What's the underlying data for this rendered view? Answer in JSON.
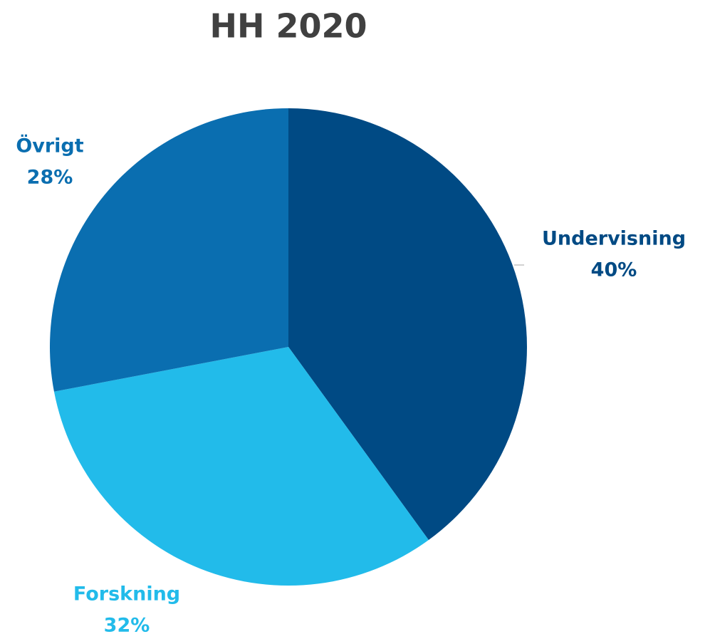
{
  "chart_data": {
    "type": "pie",
    "title": "HH 2020",
    "categories": [
      "Undervisning",
      "Forskning",
      "Övrigt"
    ],
    "values": [
      40,
      32,
      28
    ],
    "value_labels": [
      "40%",
      "32%",
      "28%"
    ],
    "colors": [
      "#004a84",
      "#22bbea",
      "#0a6eb0"
    ]
  }
}
